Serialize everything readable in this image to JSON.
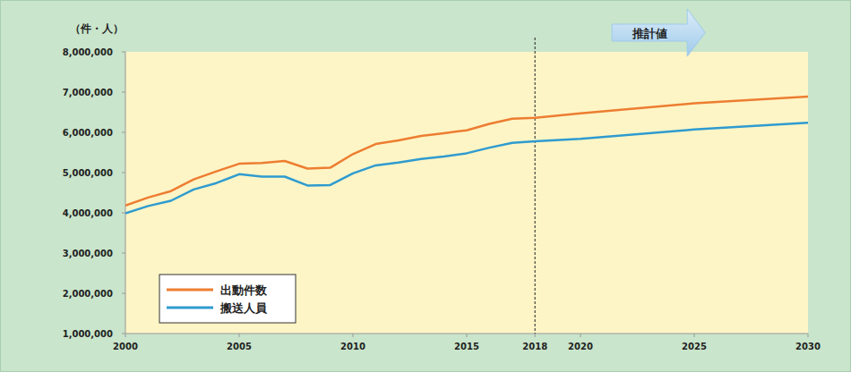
{
  "chart_data": {
    "type": "line",
    "ylabel": "（件・人）",
    "x": [
      2000,
      2001,
      2002,
      2003,
      2004,
      2005,
      2006,
      2007,
      2008,
      2009,
      2010,
      2011,
      2012,
      2013,
      2014,
      2015,
      2016,
      2017,
      2018,
      2020,
      2025,
      2030
    ],
    "series": [
      {
        "name": "出動件数",
        "color": "#ed7d31",
        "values": [
          4180000,
          4380000,
          4540000,
          4830000,
          5030000,
          5220000,
          5240000,
          5290000,
          5100000,
          5120000,
          5460000,
          5710000,
          5800000,
          5910000,
          5980000,
          6050000,
          6210000,
          6340000,
          6360000,
          6470000,
          6720000,
          6890000
        ]
      },
      {
        "name": "搬送人員",
        "color": "#2f9bcf",
        "values": [
          3990000,
          4170000,
          4300000,
          4580000,
          4740000,
          4960000,
          4900000,
          4900000,
          4680000,
          4690000,
          4980000,
          5180000,
          5250000,
          5340000,
          5400000,
          5480000,
          5620000,
          5740000,
          5780000,
          5840000,
          6070000,
          6240000
        ]
      }
    ],
    "xlim": [
      2000,
      2030
    ],
    "xticks": [
      2000,
      2005,
      2010,
      2015,
      2018,
      2020,
      2025,
      2030
    ],
    "ylim": [
      1000000,
      8000000
    ],
    "yticks": [
      {
        "value": 1000000,
        "label": "1,000,000"
      },
      {
        "value": 2000000,
        "label": "2,000,000"
      },
      {
        "value": 3000000,
        "label": "3,000,000"
      },
      {
        "value": 4000000,
        "label": "4,000,000"
      },
      {
        "value": 5000000,
        "label": "5,000,000"
      },
      {
        "value": 6000000,
        "label": "6,000,000"
      },
      {
        "value": 7000000,
        "label": "7,000,000"
      },
      {
        "value": 8000000,
        "label": "8,000,000"
      }
    ],
    "annotations": [
      {
        "text": "推計値",
        "x": 2018
      }
    ],
    "grid": false,
    "legend": "lower left"
  }
}
